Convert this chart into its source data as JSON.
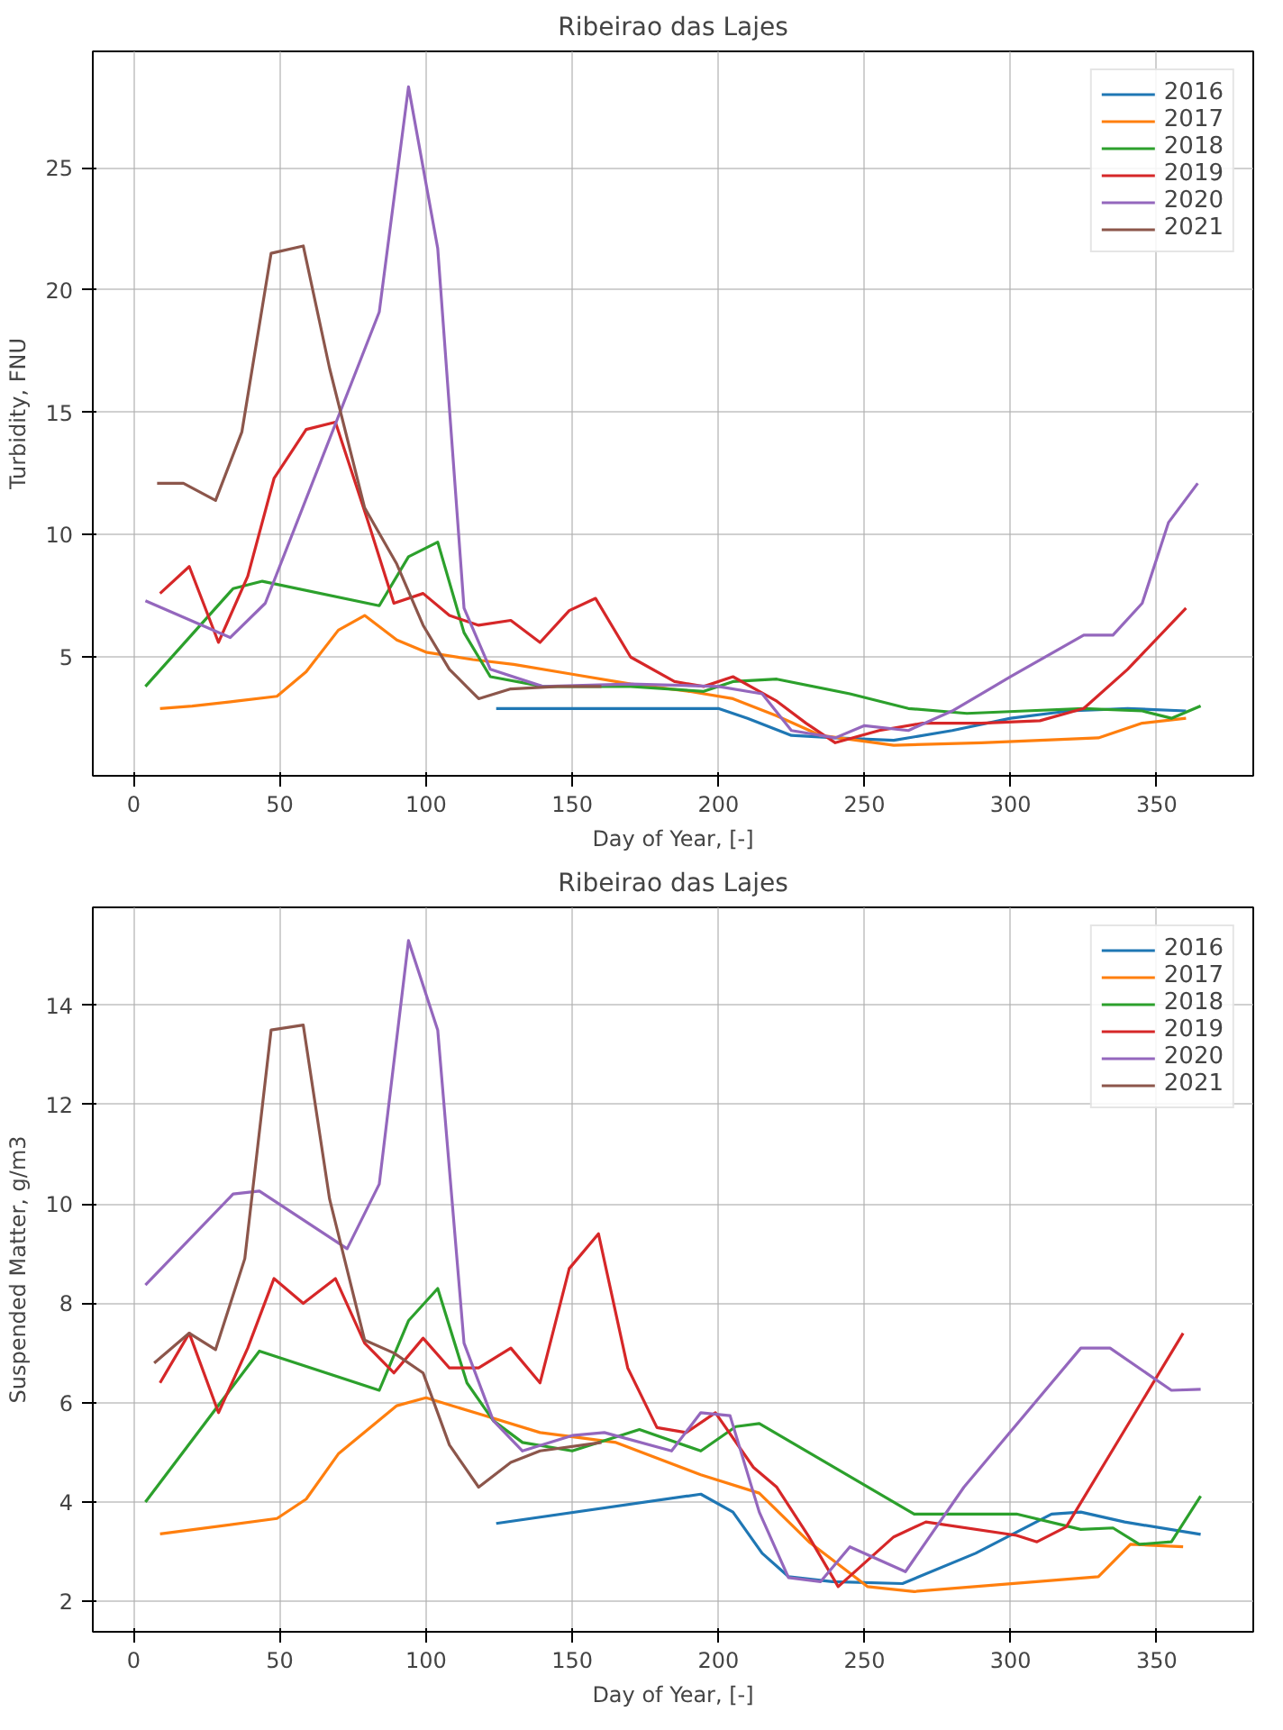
{
  "chart_data": [
    {
      "type": "line",
      "title": "Ribeirao das Lajes",
      "xlabel": "Day of Year, [-]",
      "ylabel": "Turbidity, FNU",
      "xlim": [
        -14,
        383
      ],
      "ylim": [
        0.15,
        29.75
      ],
      "xticks": [
        0,
        50,
        100,
        150,
        200,
        250,
        300,
        350
      ],
      "yticks": [
        5,
        10,
        15,
        20,
        25
      ],
      "grid": true,
      "legend": "top right",
      "line_style": "solid",
      "series": [
        {
          "name": "2016",
          "color": "#1f77b4",
          "x": [
            124,
            200,
            210,
            225,
            240,
            260,
            280,
            300,
            320,
            340,
            360
          ],
          "values": [
            2.9,
            2.9,
            2.5,
            1.8,
            1.7,
            1.6,
            2.0,
            2.5,
            2.8,
            2.9,
            2.8
          ]
        },
        {
          "name": "2017",
          "color": "#ff7f0e",
          "x": [
            9,
            20,
            35,
            49,
            59,
            70,
            79,
            90,
            100,
            116,
            130,
            150,
            170,
            190,
            205,
            220,
            235,
            260,
            290,
            330,
            345,
            360
          ],
          "values": [
            2.9,
            3.0,
            3.2,
            3.4,
            4.4,
            6.1,
            6.7,
            5.7,
            5.2,
            4.9,
            4.7,
            4.3,
            3.9,
            3.6,
            3.3,
            2.6,
            1.8,
            1.4,
            1.5,
            1.7,
            2.3,
            2.5
          ]
        },
        {
          "name": "2018",
          "color": "#2ca02c",
          "x": [
            4,
            34,
            44,
            84,
            94,
            104,
            113,
            122,
            140,
            170,
            195,
            205,
            220,
            245,
            265,
            285,
            305,
            325,
            345,
            355,
            365
          ],
          "values": [
            3.8,
            7.8,
            8.1,
            7.1,
            9.1,
            9.7,
            6.0,
            4.2,
            3.8,
            3.8,
            3.6,
            4.0,
            4.1,
            3.5,
            2.9,
            2.7,
            2.8,
            2.9,
            2.8,
            2.5,
            3.0
          ]
        },
        {
          "name": "2019",
          "color": "#d62728",
          "x": [
            9,
            19,
            29,
            39,
            48,
            59,
            69,
            80,
            89,
            99,
            108,
            118,
            129,
            139,
            149,
            158,
            170,
            185,
            195,
            205,
            220,
            230,
            240,
            255,
            270,
            290,
            310,
            325,
            340,
            360
          ],
          "values": [
            7.6,
            8.7,
            5.6,
            8.3,
            12.3,
            14.3,
            14.6,
            10.6,
            7.2,
            7.6,
            6.7,
            6.3,
            6.5,
            5.6,
            6.9,
            7.4,
            5.0,
            4.0,
            3.8,
            4.2,
            3.2,
            2.3,
            1.5,
            2.0,
            2.3,
            2.3,
            2.4,
            2.9,
            4.5,
            7.0
          ]
        },
        {
          "name": "2020",
          "color": "#9467bd",
          "x": [
            4,
            33,
            45,
            84,
            94,
            104,
            113,
            122,
            140,
            170,
            200,
            215,
            225,
            240,
            250,
            265,
            280,
            300,
            325,
            335,
            345,
            354,
            364
          ],
          "values": [
            7.3,
            5.8,
            7.2,
            19.1,
            28.3,
            21.7,
            7.0,
            4.5,
            3.8,
            3.9,
            3.8,
            3.5,
            2.0,
            1.7,
            2.2,
            2.0,
            2.8,
            4.2,
            5.9,
            5.9,
            7.2,
            10.5,
            12.1
          ]
        },
        {
          "name": "2021",
          "color": "#8c564b",
          "x": [
            8,
            17,
            28,
            37,
            47,
            58,
            67,
            79,
            90,
            99,
            108,
            118,
            129,
            145,
            160
          ],
          "values": [
            12.1,
            12.1,
            11.4,
            14.2,
            21.5,
            21.8,
            16.8,
            11.1,
            8.8,
            6.3,
            4.5,
            3.3,
            3.7,
            3.8,
            3.8
          ]
        }
      ]
    },
    {
      "type": "line",
      "title": "Ribeirao das Lajes",
      "xlabel": "Day of Year, [-]",
      "ylabel": "Suspended Matter, g/m3",
      "xlim": [
        -14,
        383
      ],
      "ylim": [
        1.39,
        15.97
      ],
      "xticks": [
        0,
        50,
        100,
        150,
        200,
        250,
        300,
        350
      ],
      "yticks": [
        2,
        4,
        6,
        8,
        10,
        12,
        14
      ],
      "grid": true,
      "legend": "top right",
      "line_style": "solid",
      "series": [
        {
          "name": "2016",
          "color": "#1f77b4",
          "x": [
            124,
            194,
            205,
            215,
            224,
            239,
            263,
            288,
            314,
            324,
            339,
            365
          ],
          "values": [
            3.57,
            4.16,
            3.8,
            2.97,
            2.5,
            2.4,
            2.36,
            2.97,
            3.76,
            3.8,
            3.6,
            3.35
          ]
        },
        {
          "name": "2017",
          "color": "#ff7f0e",
          "x": [
            9,
            49,
            59,
            70,
            90,
            100,
            119,
            139,
            165,
            194,
            214,
            231,
            251,
            267,
            330,
            341,
            359
          ],
          "values": [
            3.36,
            3.67,
            4.06,
            4.97,
            5.94,
            6.1,
            5.76,
            5.4,
            5.2,
            4.55,
            4.18,
            3.2,
            2.3,
            2.2,
            2.5,
            3.15,
            3.1
          ]
        },
        {
          "name": "2018",
          "color": "#2ca02c",
          "x": [
            4,
            43,
            84,
            94,
            104,
            114,
            123,
            133,
            150,
            173,
            194,
            206,
            214,
            267,
            302,
            324,
            335,
            344,
            355,
            365
          ],
          "values": [
            4.0,
            7.04,
            6.25,
            7.65,
            8.3,
            6.4,
            5.64,
            5.2,
            5.03,
            5.46,
            5.03,
            5.52,
            5.58,
            3.76,
            3.76,
            3.45,
            3.48,
            3.15,
            3.2,
            4.12
          ]
        },
        {
          "name": "2019",
          "color": "#d62728",
          "x": [
            9,
            19,
            29,
            39,
            48,
            58,
            69,
            79,
            89,
            99,
            108,
            118,
            129,
            139,
            149,
            159,
            169,
            179,
            189,
            199,
            212,
            220,
            231,
            241,
            260,
            271,
            302,
            309,
            319,
            359
          ],
          "values": [
            6.4,
            7.4,
            5.8,
            7.1,
            8.5,
            8.0,
            8.5,
            7.2,
            6.6,
            7.3,
            6.7,
            6.7,
            7.1,
            6.4,
            8.7,
            9.4,
            6.7,
            5.5,
            5.4,
            5.8,
            4.7,
            4.3,
            3.3,
            2.3,
            3.3,
            3.6,
            3.33,
            3.2,
            3.5,
            7.4
          ]
        },
        {
          "name": "2020",
          "color": "#9467bd",
          "x": [
            4,
            34,
            43,
            73,
            84,
            94,
            104,
            113,
            123,
            133,
            150,
            161,
            184,
            194,
            204,
            214,
            224,
            235,
            245,
            264,
            284,
            324,
            334,
            355,
            365
          ],
          "values": [
            8.37,
            10.2,
            10.26,
            9.1,
            10.4,
            15.3,
            13.5,
            7.2,
            5.64,
            5.03,
            5.34,
            5.4,
            5.03,
            5.8,
            5.74,
            3.8,
            2.48,
            2.4,
            3.1,
            2.6,
            4.3,
            7.1,
            7.1,
            6.25,
            6.27
          ]
        },
        {
          "name": "2021",
          "color": "#8c564b",
          "x": [
            7,
            19,
            28,
            38,
            47,
            58,
            67,
            79,
            89,
            99,
            108,
            118,
            129,
            139,
            160
          ],
          "values": [
            6.8,
            7.4,
            7.07,
            8.9,
            13.5,
            13.6,
            10.1,
            7.26,
            7.0,
            6.6,
            5.15,
            4.3,
            4.8,
            5.03,
            5.2
          ]
        }
      ]
    }
  ]
}
